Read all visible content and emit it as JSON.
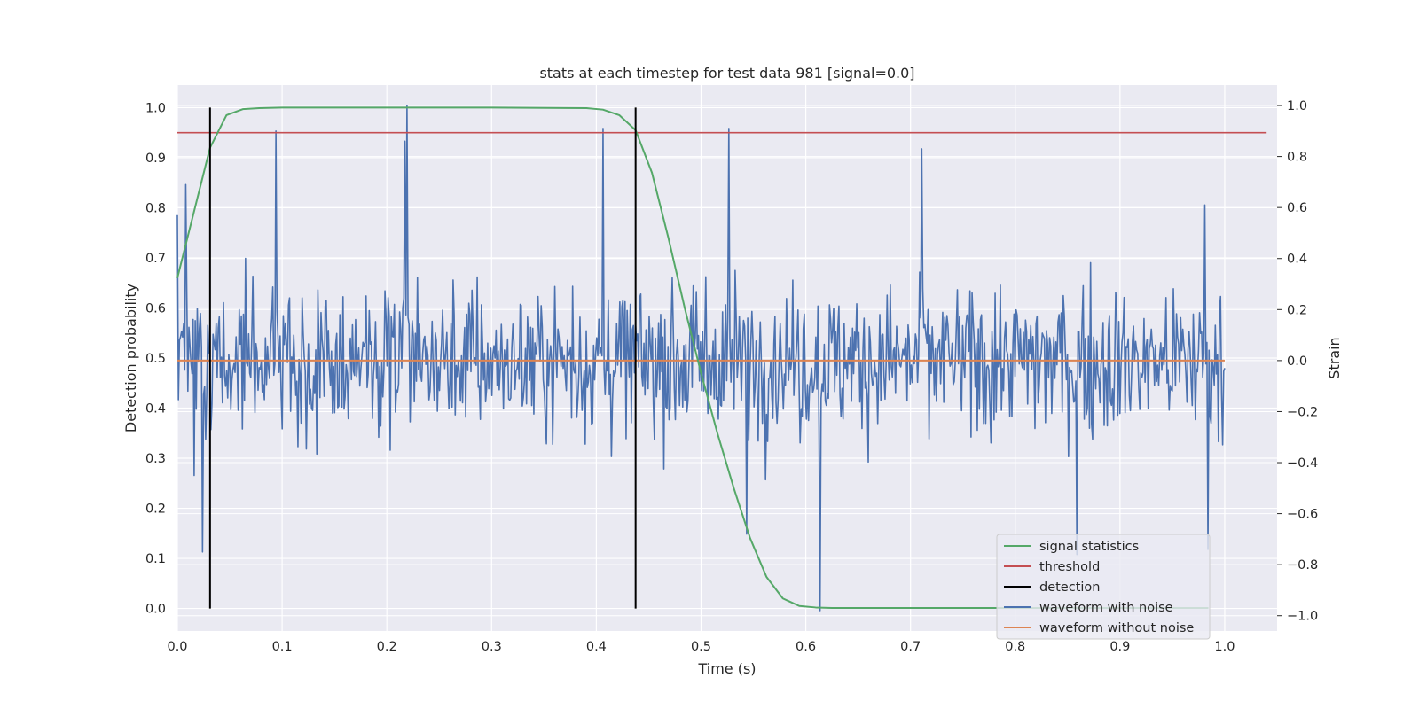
{
  "chart_data": {
    "type": "line",
    "title": "stats at each timestep for test data 981 [signal=0.0]",
    "xlabel": "Time (s)",
    "ylabel_left": "Detection probability",
    "ylabel_right": "Strain",
    "xlim": [
      0.0,
      1.05
    ],
    "ylim_left": [
      -0.045,
      1.045
    ],
    "ylim_right": [
      -1.06,
      1.08
    ],
    "x_ticks": [
      0.0,
      0.1,
      0.2,
      0.3,
      0.4,
      0.5,
      0.6,
      0.7,
      0.8,
      0.9,
      1.0
    ],
    "x_tick_labels": [
      "0.0",
      "0.1",
      "0.2",
      "0.3",
      "0.4",
      "0.5",
      "0.6",
      "0.7",
      "0.8",
      "0.9",
      "1.0"
    ],
    "y_left_ticks": [
      0.0,
      0.1,
      0.2,
      0.3,
      0.4,
      0.5,
      0.6,
      0.7,
      0.8,
      0.9,
      1.0
    ],
    "y_left_tick_labels": [
      "0.0",
      "0.1",
      "0.2",
      "0.3",
      "0.4",
      "0.5",
      "0.6",
      "0.7",
      "0.8",
      "0.9",
      "1.0"
    ],
    "y_right_ticks": [
      -1.0,
      -0.8,
      -0.6,
      -0.4,
      -0.2,
      0.0,
      0.2,
      0.4,
      0.6,
      0.8,
      1.0
    ],
    "y_right_tick_labels": [
      "−1.0",
      "−0.8",
      "−0.6",
      "−0.4",
      "−0.2",
      "0.0",
      "0.2",
      "0.4",
      "0.6",
      "0.8",
      "1.0"
    ],
    "grid": true,
    "legend_position": "lower-right",
    "series": [
      {
        "name": "signal statistics",
        "color": "#55a868",
        "axis": "left",
        "x": [
          0.0,
          0.0156,
          0.0312,
          0.0469,
          0.0625,
          0.0781,
          0.1,
          0.2,
          0.3,
          0.3906,
          0.4063,
          0.4219,
          0.4375,
          0.4531,
          0.4688,
          0.4844,
          0.5,
          0.5156,
          0.5313,
          0.5469,
          0.5625,
          0.5781,
          0.5938,
          0.6094,
          0.625,
          0.7,
          0.8,
          0.9,
          0.9844
        ],
        "y": [
          0.66,
          0.79,
          0.92,
          0.985,
          0.997,
          0.999,
          1.0,
          1.0,
          1.0,
          0.999,
          0.996,
          0.985,
          0.955,
          0.87,
          0.74,
          0.6,
          0.47,
          0.35,
          0.24,
          0.14,
          0.063,
          0.02,
          0.005,
          0.002,
          0.001,
          0.001,
          0.001,
          0.001,
          0.001
        ]
      },
      {
        "name": "threshold",
        "color": "#c44e52",
        "axis": "left",
        "x": [
          0.0,
          1.04
        ],
        "y": [
          0.95,
          0.95
        ]
      },
      {
        "name": "detection",
        "color": "#000000",
        "axis": "left",
        "segments": [
          {
            "x": 0.0312,
            "y0": 0.0,
            "y1": 1.0
          },
          {
            "x": 0.4375,
            "y0": 0.0,
            "y1": 1.0
          }
        ]
      },
      {
        "name": "waveform with noise",
        "color": "#4c72b0",
        "axis": "right",
        "x_start": 0.0,
        "x_end": 1.0,
        "n_points": 1000,
        "y_min": -0.98,
        "y_max": 1.0,
        "peaks": [
          {
            "x": 0.0,
            "y": 0.57
          },
          {
            "x": 0.008,
            "y": 0.69
          },
          {
            "x": 0.0244,
            "y": -0.75
          },
          {
            "x": 0.0937,
            "y": 0.9
          },
          {
            "x": 0.2196,
            "y": 1.0
          },
          {
            "x": 0.2175,
            "y": 0.86
          },
          {
            "x": 0.4066,
            "y": 0.91
          },
          {
            "x": 0.5269,
            "y": 0.91
          },
          {
            "x": 0.6139,
            "y": -0.98
          },
          {
            "x": 0.5436,
            "y": -0.68
          },
          {
            "x": 0.7109,
            "y": 0.83
          },
          {
            "x": 0.8584,
            "y": -0.76
          },
          {
            "x": 0.9808,
            "y": 0.61
          },
          {
            "x": 0.9844,
            "y": -0.74
          },
          {
            "x": 0.9954,
            "y": 0.2
          }
        ]
      },
      {
        "name": "waveform without noise",
        "color": "#dd8452",
        "axis": "right",
        "x": [
          0.0,
          1.0
        ],
        "y": [
          0.0,
          0.0
        ]
      }
    ]
  }
}
